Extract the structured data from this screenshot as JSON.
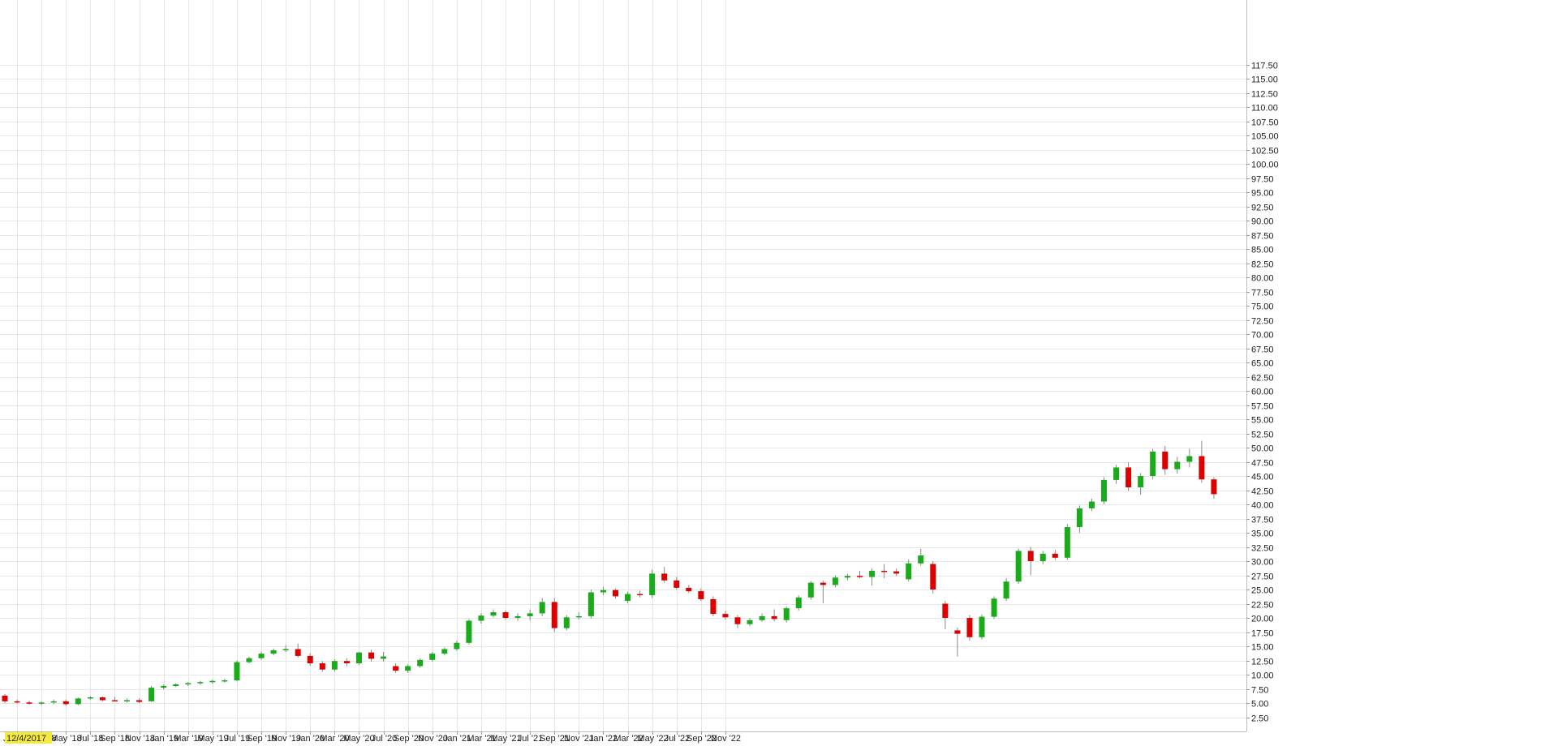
{
  "chart_data": {
    "type": "candlestick",
    "title": "",
    "xlabel": "",
    "ylabel": "",
    "period": "monthly",
    "ylim": [
      0,
      120
    ],
    "y_ticks": [
      2.5,
      5,
      7.5,
      10,
      12.5,
      15,
      17.5,
      20,
      22.5,
      25,
      27.5,
      30,
      32.5,
      35,
      37.5,
      40,
      42.5,
      45,
      47.5,
      50,
      52.5,
      55,
      57.5,
      60,
      62.5,
      65,
      67.5,
      70,
      72.5,
      75,
      77.5,
      80,
      82.5,
      85,
      87.5,
      90,
      92.5,
      95,
      97.5,
      100,
      102.5,
      105,
      107.5,
      110,
      112.5,
      115,
      117.5
    ],
    "y_tick_labels": [
      "2.50",
      "5.00",
      "7.50",
      "10.00",
      "12.50",
      "15.00",
      "17.50",
      "20.00",
      "22.50",
      "25.00",
      "27.50",
      "30.00",
      "32.50",
      "35.00",
      "37.50",
      "40.00",
      "42.50",
      "45.00",
      "47.50",
      "50.00",
      "52.50",
      "55.00",
      "57.50",
      "60.00",
      "62.50",
      "65.00",
      "67.50",
      "70.00",
      "72.50",
      "75.00",
      "77.50",
      "80.00",
      "82.50",
      "85.00",
      "87.50",
      "90.00",
      "92.50",
      "95.00",
      "97.50",
      "100.00",
      "102.50",
      "105.00",
      "107.50",
      "110.00",
      "112.50",
      "115.00",
      "117.50"
    ],
    "x_tick_labels": [
      "Jan '18",
      "Mar '18",
      "May '18",
      "Jul '18",
      "Sep '18",
      "Nov '18",
      "Jan '19",
      "Mar '19",
      "May '19",
      "Jul '19",
      "Sep '19",
      "Nov '19",
      "Jan '20",
      "Mar '20",
      "May '20",
      "Jul '20",
      "Sep '20",
      "Nov '20",
      "Jan '21",
      "Mar '21",
      "May '21",
      "Jul '21",
      "Sep '21",
      "Nov '21",
      "Jan '22",
      "Mar '22",
      "May '22",
      "Jul '22",
      "Sep '22",
      "Nov '22"
    ],
    "cursor_date": "12/4/2017",
    "up_color": "#1aab1a",
    "down_color": "#dd0000",
    "wick_color": "#888888",
    "grid": true,
    "grid_color": "#e6e6e6",
    "axis_side": "right",
    "candles": [
      {
        "date": "2017-12",
        "open": 6.3,
        "high": 6.6,
        "low": 5.0,
        "close": 5.3
      },
      {
        "date": "2018-01",
        "open": 5.3,
        "high": 5.6,
        "low": 4.9,
        "close": 5.1
      },
      {
        "date": "2018-02",
        "open": 5.1,
        "high": 5.4,
        "low": 4.7,
        "close": 4.9
      },
      {
        "date": "2018-03",
        "open": 4.9,
        "high": 5.3,
        "low": 4.6,
        "close": 5.1
      },
      {
        "date": "2018-04",
        "open": 5.1,
        "high": 5.6,
        "low": 4.8,
        "close": 5.3
      },
      {
        "date": "2018-05",
        "open": 5.3,
        "high": 5.6,
        "low": 4.5,
        "close": 4.8
      },
      {
        "date": "2018-06",
        "open": 4.8,
        "high": 6.0,
        "low": 4.6,
        "close": 5.8
      },
      {
        "date": "2018-07",
        "open": 5.8,
        "high": 6.2,
        "low": 5.6,
        "close": 6.0
      },
      {
        "date": "2018-08",
        "open": 6.0,
        "high": 6.2,
        "low": 5.3,
        "close": 5.5
      },
      {
        "date": "2018-09",
        "open": 5.5,
        "high": 6.1,
        "low": 5.3,
        "close": 5.3
      },
      {
        "date": "2018-10",
        "open": 5.3,
        "high": 5.8,
        "low": 5.1,
        "close": 5.5
      },
      {
        "date": "2018-11",
        "open": 5.5,
        "high": 5.8,
        "low": 5.0,
        "close": 5.2
      },
      {
        "date": "2018-12",
        "open": 5.3,
        "high": 8.0,
        "low": 5.2,
        "close": 7.7
      },
      {
        "date": "2019-01",
        "open": 7.7,
        "high": 8.3,
        "low": 7.4,
        "close": 8.0
      },
      {
        "date": "2019-02",
        "open": 8.0,
        "high": 8.5,
        "low": 7.8,
        "close": 8.3
      },
      {
        "date": "2019-03",
        "open": 8.3,
        "high": 8.7,
        "low": 8.0,
        "close": 8.5
      },
      {
        "date": "2019-04",
        "open": 8.5,
        "high": 8.9,
        "low": 8.2,
        "close": 8.7
      },
      {
        "date": "2019-05",
        "open": 8.7,
        "high": 9.1,
        "low": 8.4,
        "close": 8.9
      },
      {
        "date": "2019-06",
        "open": 8.9,
        "high": 9.3,
        "low": 8.6,
        "close": 9.0
      },
      {
        "date": "2019-07",
        "open": 9.0,
        "high": 12.5,
        "low": 8.8,
        "close": 12.2
      },
      {
        "date": "2019-08",
        "open": 12.2,
        "high": 13.2,
        "low": 12.0,
        "close": 12.9
      },
      {
        "date": "2019-09",
        "open": 12.9,
        "high": 14.0,
        "low": 12.6,
        "close": 13.7
      },
      {
        "date": "2019-10",
        "open": 13.7,
        "high": 14.6,
        "low": 13.4,
        "close": 14.3
      },
      {
        "date": "2019-11",
        "open": 14.3,
        "high": 15.2,
        "low": 14.0,
        "close": 14.5
      },
      {
        "date": "2019-12",
        "open": 14.5,
        "high": 15.5,
        "low": 13.0,
        "close": 13.3
      },
      {
        "date": "2020-01",
        "open": 13.3,
        "high": 13.8,
        "low": 11.6,
        "close": 12.0
      },
      {
        "date": "2020-02",
        "open": 12.0,
        "high": 12.4,
        "low": 10.5,
        "close": 10.9
      },
      {
        "date": "2020-03",
        "open": 10.9,
        "high": 12.7,
        "low": 10.5,
        "close": 12.4
      },
      {
        "date": "2020-04",
        "open": 12.4,
        "high": 12.9,
        "low": 11.5,
        "close": 12.0
      },
      {
        "date": "2020-05",
        "open": 12.0,
        "high": 14.0,
        "low": 11.7,
        "close": 13.9
      },
      {
        "date": "2020-06",
        "open": 13.9,
        "high": 14.4,
        "low": 12.3,
        "close": 12.8
      },
      {
        "date": "2020-07",
        "open": 12.8,
        "high": 14.0,
        "low": 12.3,
        "close": 13.2
      },
      {
        "date": "2020-08",
        "open": 11.5,
        "high": 12.0,
        "low": 10.3,
        "close": 10.7
      },
      {
        "date": "2020-09",
        "open": 10.7,
        "high": 11.8,
        "low": 10.3,
        "close": 11.5
      },
      {
        "date": "2020-10",
        "open": 11.5,
        "high": 12.9,
        "low": 11.2,
        "close": 12.6
      },
      {
        "date": "2020-11",
        "open": 12.6,
        "high": 14.0,
        "low": 12.3,
        "close": 13.7
      },
      {
        "date": "2020-12",
        "open": 13.7,
        "high": 14.8,
        "low": 13.4,
        "close": 14.5
      },
      {
        "date": "2021-01",
        "open": 14.5,
        "high": 16.0,
        "low": 14.2,
        "close": 15.6
      },
      {
        "date": "2021-02",
        "open": 15.6,
        "high": 19.8,
        "low": 15.3,
        "close": 19.5
      },
      {
        "date": "2021-03",
        "open": 19.5,
        "high": 20.8,
        "low": 19.0,
        "close": 20.4
      },
      {
        "date": "2021-04",
        "open": 20.4,
        "high": 21.5,
        "low": 20.1,
        "close": 21.0
      },
      {
        "date": "2021-05",
        "open": 21.0,
        "high": 21.3,
        "low": 19.7,
        "close": 20.0
      },
      {
        "date": "2021-06",
        "open": 20.0,
        "high": 20.8,
        "low": 19.5,
        "close": 20.3
      },
      {
        "date": "2021-07",
        "open": 20.3,
        "high": 21.5,
        "low": 19.5,
        "close": 20.8
      },
      {
        "date": "2021-08",
        "open": 20.8,
        "high": 23.5,
        "low": 20.3,
        "close": 22.8
      },
      {
        "date": "2021-09",
        "open": 22.8,
        "high": 23.5,
        "low": 17.5,
        "close": 18.2
      },
      {
        "date": "2021-10",
        "open": 18.2,
        "high": 20.5,
        "low": 17.8,
        "close": 20.1
      },
      {
        "date": "2021-11",
        "open": 20.1,
        "high": 21.0,
        "low": 19.7,
        "close": 20.3
      },
      {
        "date": "2021-12",
        "open": 20.3,
        "high": 25.0,
        "low": 19.9,
        "close": 24.5
      },
      {
        "date": "2022-01",
        "open": 24.5,
        "high": 25.5,
        "low": 24.0,
        "close": 24.9
      },
      {
        "date": "2022-02",
        "open": 24.9,
        "high": 25.2,
        "low": 23.4,
        "close": 23.8
      },
      {
        "date": "2022-03",
        "open": 23.0,
        "high": 24.6,
        "low": 22.6,
        "close": 24.2
      },
      {
        "date": "2022-04",
        "open": 24.2,
        "high": 24.8,
        "low": 23.6,
        "close": 24.0
      },
      {
        "date": "2022-05",
        "open": 24.0,
        "high": 28.5,
        "low": 23.5,
        "close": 27.8
      },
      {
        "date": "2022-06",
        "open": 27.8,
        "high": 29.0,
        "low": 26.2,
        "close": 26.6
      },
      {
        "date": "2022-07",
        "open": 26.6,
        "high": 27.2,
        "low": 25.0,
        "close": 25.3
      },
      {
        "date": "2022-08",
        "open": 25.3,
        "high": 25.8,
        "low": 24.4,
        "close": 24.7
      },
      {
        "date": "2022-09",
        "open": 24.7,
        "high": 25.2,
        "low": 23.0,
        "close": 23.3
      },
      {
        "date": "2022-10",
        "open": 23.3,
        "high": 23.8,
        "low": 20.3,
        "close": 20.7
      },
      {
        "date": "2022-11",
        "open": 20.7,
        "high": 21.2,
        "low": 19.7,
        "close": 20.1
      },
      {
        "date": "2022-12",
        "open": 20.1,
        "high": 20.5,
        "low": 18.2,
        "close": 18.9
      },
      {
        "date": "2023-01",
        "open": 18.9,
        "high": 20.0,
        "low": 18.5,
        "close": 19.6
      },
      {
        "date": "2023-02",
        "open": 19.6,
        "high": 20.8,
        "low": 19.3,
        "close": 20.3
      },
      {
        "date": "2023-03",
        "open": 20.3,
        "high": 21.5,
        "low": 19.4,
        "close": 19.8
      },
      {
        "date": "2023-04",
        "open": 19.6,
        "high": 22.0,
        "low": 19.2,
        "close": 21.7
      },
      {
        "date": "2023-05",
        "open": 21.7,
        "high": 24.0,
        "low": 21.3,
        "close": 23.6
      },
      {
        "date": "2023-06",
        "open": 23.6,
        "high": 26.5,
        "low": 23.2,
        "close": 26.2
      },
      {
        "date": "2023-07",
        "open": 26.2,
        "high": 26.6,
        "low": 22.6,
        "close": 25.8
      },
      {
        "date": "2023-08",
        "open": 25.8,
        "high": 27.5,
        "low": 25.4,
        "close": 27.1
      },
      {
        "date": "2023-09",
        "open": 27.1,
        "high": 27.8,
        "low": 26.6,
        "close": 27.4
      },
      {
        "date": "2023-10",
        "open": 27.4,
        "high": 28.3,
        "low": 27.0,
        "close": 27.2
      },
      {
        "date": "2023-11",
        "open": 27.2,
        "high": 28.7,
        "low": 25.7,
        "close": 28.3
      },
      {
        "date": "2023-12",
        "open": 28.3,
        "high": 29.5,
        "low": 27.0,
        "close": 28.2
      },
      {
        "date": "2024-01",
        "open": 28.2,
        "high": 28.7,
        "low": 27.4,
        "close": 27.8
      },
      {
        "date": "2024-02",
        "open": 26.8,
        "high": 30.3,
        "low": 26.4,
        "close": 29.6
      },
      {
        "date": "2024-03",
        "open": 29.6,
        "high": 32.2,
        "low": 29.2,
        "close": 31.0
      },
      {
        "date": "2024-04",
        "open": 29.5,
        "high": 30.0,
        "low": 24.3,
        "close": 25.0
      },
      {
        "date": "2024-05",
        "open": 22.5,
        "high": 23.0,
        "low": 18.0,
        "close": 20.0
      },
      {
        "date": "2024-06",
        "open": 17.8,
        "high": 18.3,
        "low": 13.2,
        "close": 17.2
      },
      {
        "date": "2024-07",
        "open": 20.0,
        "high": 20.5,
        "low": 16.0,
        "close": 16.6
      },
      {
        "date": "2024-08",
        "open": 16.6,
        "high": 20.6,
        "low": 16.2,
        "close": 20.2
      },
      {
        "date": "2024-09",
        "open": 20.2,
        "high": 23.8,
        "low": 19.8,
        "close": 23.4
      },
      {
        "date": "2024-10",
        "open": 23.4,
        "high": 27.0,
        "low": 23.0,
        "close": 26.4
      },
      {
        "date": "2024-11",
        "open": 26.4,
        "high": 32.2,
        "low": 26.0,
        "close": 31.8
      },
      {
        "date": "2024-12",
        "open": 31.8,
        "high": 32.5,
        "low": 27.5,
        "close": 30.0
      },
      {
        "date": "2025-01",
        "open": 30.0,
        "high": 31.8,
        "low": 29.4,
        "close": 31.3
      },
      {
        "date": "2025-02",
        "open": 31.3,
        "high": 32.0,
        "low": 30.2,
        "close": 30.6
      },
      {
        "date": "2025-03",
        "open": 30.6,
        "high": 36.5,
        "low": 30.2,
        "close": 36.0
      },
      {
        "date": "2025-04",
        "open": 36.0,
        "high": 39.8,
        "low": 35.0,
        "close": 39.3
      },
      {
        "date": "2025-05",
        "open": 39.3,
        "high": 41.0,
        "low": 38.8,
        "close": 40.5
      },
      {
        "date": "2025-06",
        "open": 40.5,
        "high": 44.8,
        "low": 40.0,
        "close": 44.3
      },
      {
        "date": "2025-07",
        "open": 44.3,
        "high": 47.0,
        "low": 43.6,
        "close": 46.5
      },
      {
        "date": "2025-08",
        "open": 46.5,
        "high": 47.4,
        "low": 42.4,
        "close": 43.0
      },
      {
        "date": "2025-09",
        "open": 43.0,
        "high": 45.5,
        "low": 41.7,
        "close": 45.0
      },
      {
        "date": "2025-10",
        "open": 45.0,
        "high": 49.8,
        "low": 44.4,
        "close": 49.3
      },
      {
        "date": "2025-11",
        "open": 49.3,
        "high": 50.3,
        "low": 45.2,
        "close": 46.2
      },
      {
        "date": "2025-12",
        "open": 46.2,
        "high": 48.4,
        "low": 45.4,
        "close": 47.5
      },
      {
        "date": "2026-01",
        "open": 47.5,
        "high": 49.8,
        "low": 46.5,
        "close": 48.5
      },
      {
        "date": "2026-02",
        "open": 48.5,
        "high": 51.2,
        "low": 43.8,
        "close": 44.4
      },
      {
        "date": "2026-03",
        "open": 44.4,
        "high": 44.8,
        "low": 41.0,
        "close": 41.8
      }
    ]
  }
}
